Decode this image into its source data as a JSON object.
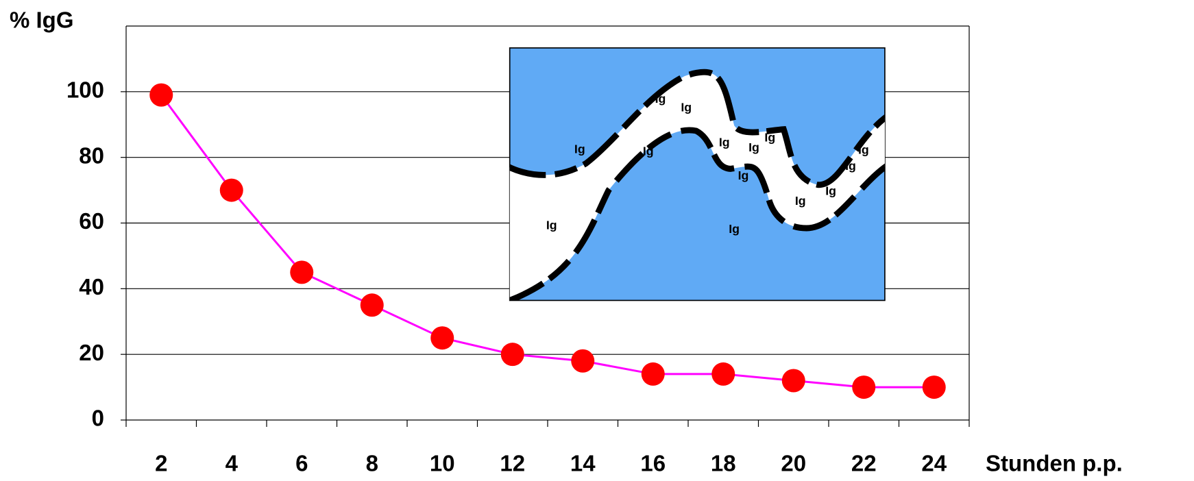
{
  "chart_data": {
    "type": "line",
    "y_label": "% IgG",
    "x_label": "Stunden p.p.",
    "categories": [
      "2",
      "4",
      "6",
      "8",
      "10",
      "12",
      "14",
      "16",
      "18",
      "20",
      "22",
      "24"
    ],
    "values": [
      99,
      70,
      45,
      35,
      25,
      20,
      18,
      14,
      14,
      12,
      10,
      10
    ],
    "color": "#ff00ff",
    "marker_color": "#ff0000",
    "ylim": [
      0,
      120
    ],
    "yticks": [
      0,
      20,
      40,
      60,
      80,
      100
    ],
    "grid": true
  },
  "inset": {
    "labels": [
      "Ig",
      "Ig",
      "Ig",
      "Ig",
      "Ig",
      "Ig",
      "Ig",
      "Ig",
      "Ig",
      "Ig",
      "Ig",
      "Ig",
      "Ig",
      "Ig"
    ]
  }
}
